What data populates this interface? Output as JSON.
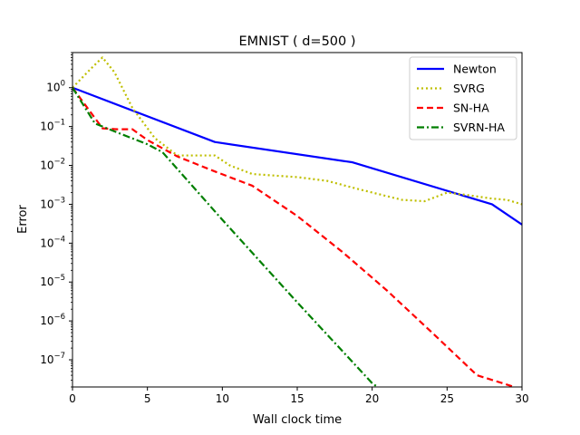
{
  "chart_data": {
    "type": "line",
    "title": "EMNIST ( d=500 )",
    "xlabel": "Wall clock time",
    "ylabel": "Error",
    "xlim": [
      0,
      30
    ],
    "ylim": [
      2e-08,
      8
    ],
    "yscale": "log",
    "xticks": [
      "0",
      "5",
      "10",
      "15",
      "20",
      "25",
      "30"
    ],
    "yticks": [
      {
        "value": 1,
        "base": "10",
        "exp": "0"
      },
      {
        "value": 0.1,
        "base": "10",
        "exp": "−1"
      },
      {
        "value": 0.01,
        "base": "10",
        "exp": "−2"
      },
      {
        "value": 0.001,
        "base": "10",
        "exp": "−3"
      },
      {
        "value": 0.0001,
        "base": "10",
        "exp": "−4"
      },
      {
        "value": 1e-05,
        "base": "10",
        "exp": "−5"
      },
      {
        "value": 1e-06,
        "base": "10",
        "exp": "−6"
      },
      {
        "value": 1e-07,
        "base": "10",
        "exp": "−7"
      }
    ],
    "grid": false,
    "legend_position": "top-right",
    "series": [
      {
        "name": "Newton",
        "color": "#0000ff",
        "dash": "solid",
        "x": [
          0,
          9.5,
          18.7,
          28,
          30
        ],
        "y": [
          1.0,
          0.04,
          0.012,
          0.001,
          0.0003
        ]
      },
      {
        "name": "SVRG",
        "color": "#bfbf00",
        "dash": "dotted",
        "x": [
          0,
          1.2,
          2.0,
          2.8,
          4.0,
          5.5,
          7.0,
          9.5,
          10.5,
          12.0,
          15.0,
          17.0,
          19.0,
          20.5,
          22.0,
          23.5,
          25.0,
          26.5,
          28.0,
          29.0,
          30.0
        ],
        "y": [
          1.0,
          3.0,
          6.0,
          2.5,
          0.3,
          0.05,
          0.018,
          0.018,
          0.01,
          0.006,
          0.005,
          0.004,
          0.0025,
          0.0018,
          0.0013,
          0.0012,
          0.002,
          0.0017,
          0.0014,
          0.0013,
          0.001
        ]
      },
      {
        "name": "SN-HA",
        "color": "#ff0000",
        "dash": "dashed",
        "x": [
          0,
          1.0,
          2.0,
          3.0,
          4.0,
          5.0,
          7.0,
          9.5,
          12.0,
          15.0,
          18.0,
          21.0,
          24.0,
          27.0,
          29.5,
          30.0
        ],
        "y": [
          1.0,
          0.3,
          0.09,
          0.085,
          0.085,
          0.045,
          0.017,
          0.007,
          0.003,
          0.0005,
          6e-05,
          6e-06,
          5e-07,
          4e-08,
          2e-08,
          1.5e-08
        ]
      },
      {
        "name": "SVRN-HA",
        "color": "#007f00",
        "dash": "dashdot",
        "x": [
          0,
          1.5,
          3.0,
          5.0,
          6.0,
          10.0,
          15.0,
          20.0,
          20.8
        ],
        "y": [
          1.0,
          0.12,
          0.07,
          0.035,
          0.022,
          0.0004,
          3e-06,
          2.5e-08,
          1.5e-08
        ]
      }
    ]
  }
}
